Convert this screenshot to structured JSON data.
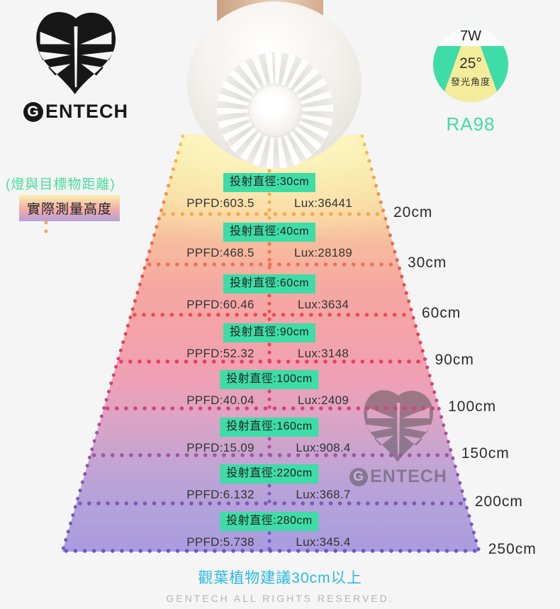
{
  "logo": {
    "g": "G",
    "rest": "ENTECH"
  },
  "watermark": {
    "g": "G",
    "rest": "ENTECH"
  },
  "spec_badge": {
    "wattage": "7W",
    "angle": "25°",
    "angle_label": "發光角度",
    "cri": "RA98"
  },
  "legend": {
    "distance_note": "(燈與目標物距離)",
    "height_label": "實際測量高度"
  },
  "rows": [
    {
      "diameter": "投射直徑:30cm",
      "ppfd": "PPFD:603.5",
      "lux": "Lux:36441",
      "distance": "20cm",
      "color": "#F6A94C"
    },
    {
      "diameter": "投射直徑:40cm",
      "ppfd": "PPFD:468.5",
      "lux": "Lux:28189",
      "distance": "30cm",
      "color": "#F2714E"
    },
    {
      "diameter": "投射直徑:60cm",
      "ppfd": "PPFD:60.46",
      "lux": "Lux:3634",
      "distance": "60cm",
      "color": "#EE4B4C"
    },
    {
      "diameter": "投射直徑:90cm",
      "ppfd": "PPFD:52.32",
      "lux": "Lux:3148",
      "distance": "90cm",
      "color": "#E73E5F"
    },
    {
      "diameter": "投射直徑:100cm",
      "ppfd": "PPFD:40.04",
      "lux": "Lux:2409",
      "distance": "100cm",
      "color": "#D84178"
    },
    {
      "diameter": "投射直徑:160cm",
      "ppfd": "PPFD:15.09",
      "lux": "Lux:908.4",
      "distance": "150cm",
      "color": "#A8529E"
    },
    {
      "diameter": "投射直徑:220cm",
      "ppfd": "PPFD:6.132",
      "lux": "Lux:368.7",
      "distance": "200cm",
      "color": "#7D57BB"
    },
    {
      "diameter": "投射直徑:280cm",
      "ppfd": "PPFD:5.738",
      "lux": "Lux:345.4",
      "distance": "250cm",
      "color": "#6E56C8"
    }
  ],
  "footer": {
    "recommendation": "觀葉植物建議30cm以上",
    "copyright": "GENTECH ALL RIGHTS RESERVED."
  },
  "colors": {
    "teal": "#3EDCA7",
    "beam_yellow": "#F5EC9B",
    "blue": "#2EB8E8",
    "copyright_gray": "#B5B5B5"
  },
  "chart_data": {
    "type": "table",
    "title": "Beam projection: diameter / PPFD / Lux by distance",
    "columns": [
      "distance_cm",
      "beam_diameter_cm",
      "ppfd",
      "lux"
    ],
    "rows": [
      [
        20,
        30,
        603.5,
        36441
      ],
      [
        30,
        40,
        468.5,
        28189
      ],
      [
        60,
        60,
        60.46,
        3634
      ],
      [
        90,
        90,
        52.32,
        3148
      ],
      [
        100,
        100,
        40.04,
        2409
      ],
      [
        150,
        160,
        15.09,
        908.4
      ],
      [
        200,
        220,
        6.132,
        368.7
      ],
      [
        250,
        280,
        5.738,
        345.4
      ]
    ]
  }
}
